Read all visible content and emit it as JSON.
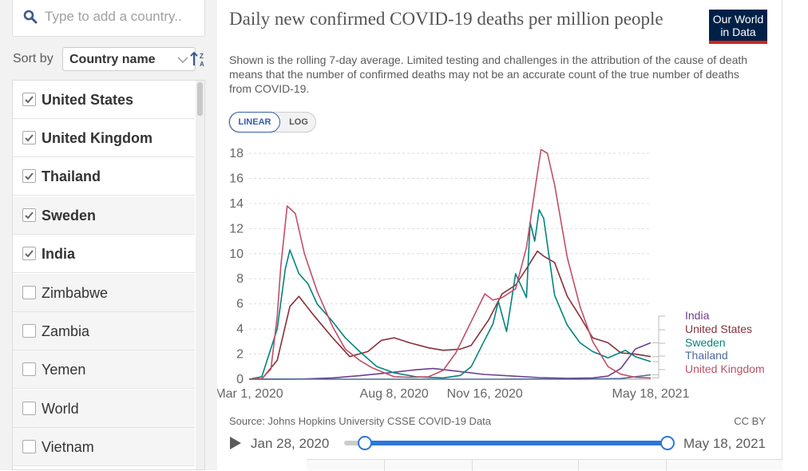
{
  "search": {
    "placeholder": "Type to add a country.."
  },
  "sort": {
    "label": "Sort by",
    "value": "Country name"
  },
  "countries": [
    {
      "name": "United States",
      "checked": true
    },
    {
      "name": "United Kingdom",
      "checked": true
    },
    {
      "name": "Thailand",
      "checked": true
    },
    {
      "name": "Sweden",
      "checked": true
    },
    {
      "name": "India",
      "checked": true
    },
    {
      "name": "Zimbabwe",
      "checked": false
    },
    {
      "name": "Zambia",
      "checked": false
    },
    {
      "name": "Yemen",
      "checked": false
    },
    {
      "name": "World",
      "checked": false
    },
    {
      "name": "Vietnam",
      "checked": false
    }
  ],
  "header": {
    "title": "Daily new confirmed COVID-19 deaths per million people",
    "subtitle": "Shown is the rolling 7-day average. Limited testing and challenges in the attribution of the cause of death means that the number of confirmed deaths may not be an accurate count of the true number of deaths from COVID-19.",
    "logo_line1": "Our World",
    "logo_line2": "in Data"
  },
  "scale_toggle": {
    "linear": "LINEAR",
    "log": "LOG",
    "active": "linear"
  },
  "footer": {
    "source": "Source: Johns Hopkins University CSSE COVID-19 Data",
    "license": "CC BY"
  },
  "timeline": {
    "start": "Jan 28, 2020",
    "end": "May 18, 2021"
  },
  "chart_data": {
    "type": "line",
    "title": "Daily new confirmed COVID-19 deaths per million people",
    "ylim": [
      0,
      18
    ],
    "yticks": [
      0,
      2,
      4,
      6,
      8,
      10,
      12,
      14,
      16,
      18
    ],
    "x_ticks": [
      "Mar 1, 2020",
      "Aug 8, 2020",
      "Nov 16, 2020",
      "May 18, 2021"
    ],
    "xlim": [
      "2020-03-01",
      "2021-05-18"
    ],
    "grid": true,
    "legend": "right, end-of-line labels",
    "series": [
      {
        "name": "India",
        "color": "#6d3e91",
        "x": [
          "2020-03-01",
          "2020-04-01",
          "2020-05-01",
          "2020-06-01",
          "2020-07-01",
          "2020-08-01",
          "2020-09-01",
          "2020-09-20",
          "2020-10-15",
          "2020-11-15",
          "2020-12-15",
          "2021-01-15",
          "2021-02-15",
          "2021-03-15",
          "2021-04-01",
          "2021-04-15",
          "2021-05-01",
          "2021-05-18"
        ],
        "values": [
          0,
          0,
          0.02,
          0.1,
          0.28,
          0.5,
          0.75,
          0.85,
          0.65,
          0.38,
          0.26,
          0.13,
          0.07,
          0.1,
          0.25,
          0.85,
          2.4,
          2.9
        ]
      },
      {
        "name": "United States",
        "color": "#883039",
        "x": [
          "2020-03-01",
          "2020-03-15",
          "2020-04-01",
          "2020-04-15",
          "2020-04-25",
          "2020-05-10",
          "2020-06-01",
          "2020-06-20",
          "2020-07-10",
          "2020-07-25",
          "2020-08-08",
          "2020-08-25",
          "2020-09-15",
          "2020-10-01",
          "2020-10-20",
          "2020-11-01",
          "2020-11-20",
          "2020-12-05",
          "2020-12-20",
          "2021-01-01",
          "2021-01-13",
          "2021-01-20",
          "2021-02-01",
          "2021-02-15",
          "2021-03-01",
          "2021-03-15",
          "2021-04-01",
          "2021-04-15",
          "2021-05-01",
          "2021-05-18"
        ],
        "values": [
          0,
          0.02,
          1.5,
          5.8,
          6.6,
          5.2,
          3.3,
          1.8,
          2.2,
          3.1,
          3.3,
          2.9,
          2.5,
          2.3,
          2.4,
          2.7,
          4.7,
          6.8,
          7.5,
          8.8,
          10.2,
          9.8,
          9.3,
          6.6,
          5.0,
          3.3,
          2.9,
          2.1,
          2.0,
          1.8
        ]
      },
      {
        "name": "Sweden",
        "color": "#00847e",
        "x": [
          "2020-03-01",
          "2020-03-15",
          "2020-04-01",
          "2020-04-10",
          "2020-04-15",
          "2020-04-25",
          "2020-05-05",
          "2020-05-15",
          "2020-06-01",
          "2020-06-15",
          "2020-07-01",
          "2020-07-20",
          "2020-08-08",
          "2020-09-01",
          "2020-10-01",
          "2020-10-20",
          "2020-11-01",
          "2020-11-15",
          "2020-11-25",
          "2020-12-01",
          "2020-12-10",
          "2020-12-20",
          "2021-01-01",
          "2021-01-05",
          "2021-01-10",
          "2021-01-15",
          "2021-01-20",
          "2021-02-01",
          "2021-02-15",
          "2021-03-01",
          "2021-03-15",
          "2021-04-01",
          "2021-04-20",
          "2021-05-01",
          "2021-05-18"
        ],
        "values": [
          0,
          0.2,
          4.0,
          8.8,
          10.3,
          8.4,
          7.6,
          6.0,
          4.6,
          3.3,
          2.2,
          1.0,
          0.5,
          0.2,
          0.1,
          0.3,
          1.0,
          3.0,
          4.4,
          6.2,
          3.8,
          8.4,
          6.5,
          12.5,
          11.0,
          13.5,
          12.8,
          6.7,
          4.3,
          2.9,
          2.2,
          1.7,
          2.3,
          1.8,
          1.4
        ]
      },
      {
        "name": "Thailand",
        "color": "#4c6a9c",
        "x": [
          "2020-03-01",
          "2020-04-15",
          "2020-06-01",
          "2020-09-01",
          "2020-12-01",
          "2021-01-01",
          "2021-03-01",
          "2021-04-15",
          "2021-05-18"
        ],
        "values": [
          0,
          0.01,
          0,
          0,
          0,
          0.01,
          0,
          0.05,
          0.35
        ]
      },
      {
        "name": "United Kingdom",
        "color": "#c15065",
        "x": [
          "2020-03-01",
          "2020-03-15",
          "2020-03-25",
          "2020-04-01",
          "2020-04-05",
          "2020-04-12",
          "2020-04-21",
          "2020-05-01",
          "2020-05-15",
          "2020-06-01",
          "2020-06-15",
          "2020-07-01",
          "2020-07-15",
          "2020-08-01",
          "2020-08-08",
          "2020-08-25",
          "2020-09-15",
          "2020-10-01",
          "2020-10-15",
          "2020-11-01",
          "2020-11-16",
          "2020-11-25",
          "2020-12-05",
          "2020-12-20",
          "2021-01-01",
          "2021-01-10",
          "2021-01-17",
          "2021-01-24",
          "2021-02-01",
          "2021-02-15",
          "2021-03-01",
          "2021-03-15",
          "2021-04-01",
          "2021-04-15",
          "2021-05-01",
          "2021-05-18"
        ],
        "values": [
          0,
          0.05,
          0.8,
          5.0,
          9.0,
          13.8,
          13.2,
          10.0,
          7.0,
          4.2,
          2.4,
          1.5,
          0.9,
          0.4,
          0.2,
          0.15,
          0.2,
          0.7,
          2.1,
          4.6,
          6.8,
          6.3,
          6.5,
          7.2,
          10.5,
          15.0,
          18.3,
          18.0,
          15.5,
          9.7,
          5.8,
          3.0,
          1.0,
          0.4,
          0.15,
          0.1
        ]
      }
    ]
  }
}
